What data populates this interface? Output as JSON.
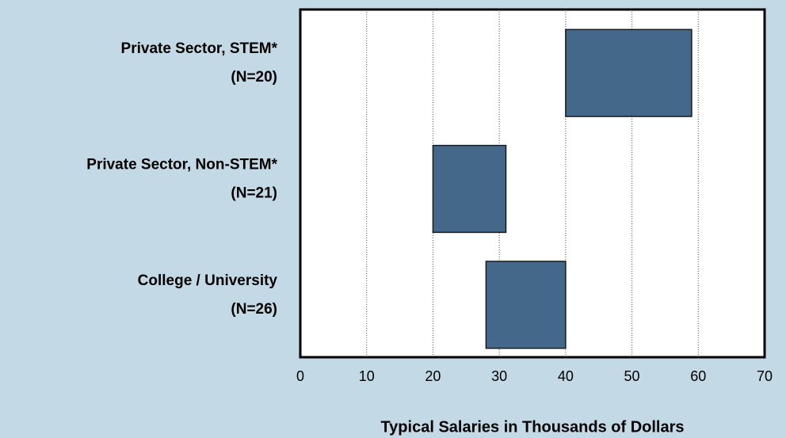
{
  "chart_data": {
    "type": "floating_bar",
    "orientation": "horizontal",
    "categories": [
      [
        "Private Sector, STEM*",
        "(N=20)"
      ],
      [
        "Private Sector, Non-STEM*",
        "(N=21)"
      ],
      [
        "College / University",
        "(N=26)"
      ]
    ],
    "values": [
      [
        40,
        59
      ],
      [
        20,
        31
      ],
      [
        28,
        40
      ]
    ],
    "color": "#44688a",
    "xlabel": "Typical Salaries in Thousands of Dollars",
    "xlim": [
      0,
      70
    ],
    "xticks": [
      0,
      10,
      20,
      30,
      40,
      50,
      60,
      70
    ],
    "grid": true
  }
}
